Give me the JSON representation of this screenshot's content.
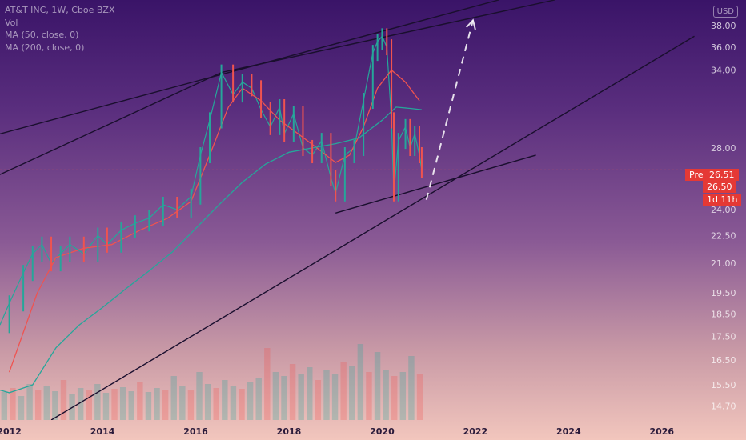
{
  "legend": {
    "title": "AT&T INC, 1W, Cboe BZX",
    "vol": "Vol",
    "ma50": "MA (50, close, 0)",
    "ma200": "MA (200, close, 0)"
  },
  "currency": "USD",
  "labels": {
    "pre": "Pre",
    "pre_price": "26.51",
    "last_price": "26.50",
    "countdown": "1d 11h"
  },
  "colors": {
    "up": "#26a69a",
    "down": "#ef5350",
    "ma50": "#ef5350",
    "ma200": "#26a69a",
    "trendline": "#1a0f2e",
    "projection": "#ffffff",
    "badge": "#e53935"
  },
  "chart_data": {
    "type": "line",
    "title": "AT&T INC, 1W, Cboe BZX",
    "y_scale": "log",
    "ylim": [
      14.2,
      40.5
    ],
    "xlim": [
      2011.8,
      2027.0
    ],
    "y_ticks": [
      {
        "value": 14.7,
        "label": "14.70"
      },
      {
        "value": 15.5,
        "label": "15.50"
      },
      {
        "value": 16.5,
        "label": "16.50"
      },
      {
        "value": 17.5,
        "label": "17.50"
      },
      {
        "value": 18.5,
        "label": "18.50"
      },
      {
        "value": 19.5,
        "label": "19.50"
      },
      {
        "value": 21.0,
        "label": "21.00"
      },
      {
        "value": 22.5,
        "label": "22.50"
      },
      {
        "value": 24.0,
        "label": "24.00"
      },
      {
        "value": 28.0,
        "label": "28.00"
      },
      {
        "value": 34.0,
        "label": "34.00"
      },
      {
        "value": 36.0,
        "label": "36.00"
      },
      {
        "value": 38.0,
        "label": "38.00"
      }
    ],
    "x_ticks": [
      2012,
      2014,
      2016,
      2018,
      2020,
      2022,
      2024,
      2026
    ],
    "series": [
      {
        "type": "price",
        "points": [
          [
            2011.8,
            18.0
          ],
          [
            2012.0,
            19.0
          ],
          [
            2012.3,
            20.5
          ],
          [
            2012.5,
            21.5
          ],
          [
            2012.7,
            22.0
          ],
          [
            2012.9,
            21.0
          ],
          [
            2013.1,
            21.5
          ],
          [
            2013.3,
            22.0
          ],
          [
            2013.6,
            21.5
          ],
          [
            2013.9,
            22.5
          ],
          [
            2014.1,
            22.0
          ],
          [
            2014.4,
            22.8
          ],
          [
            2014.7,
            23.2
          ],
          [
            2015.0,
            23.5
          ],
          [
            2015.3,
            24.3
          ],
          [
            2015.6,
            24.0
          ],
          [
            2015.9,
            24.8
          ],
          [
            2016.1,
            27.5
          ],
          [
            2016.3,
            30.0
          ],
          [
            2016.55,
            33.8
          ],
          [
            2016.8,
            32.0
          ],
          [
            2017.0,
            33.0
          ],
          [
            2017.2,
            32.5
          ],
          [
            2017.4,
            30.8
          ],
          [
            2017.6,
            29.5
          ],
          [
            2017.8,
            31.0
          ],
          [
            2017.9,
            29.0
          ],
          [
            2018.1,
            30.5
          ],
          [
            2018.3,
            28.0
          ],
          [
            2018.5,
            27.5
          ],
          [
            2018.7,
            28.5
          ],
          [
            2018.9,
            26.0
          ],
          [
            2019.0,
            25.0
          ],
          [
            2019.2,
            27.5
          ],
          [
            2019.4,
            28.0
          ],
          [
            2019.6,
            31.5
          ],
          [
            2019.8,
            35.5
          ],
          [
            2019.9,
            36.5
          ],
          [
            2020.0,
            37.0
          ],
          [
            2020.1,
            36.0
          ],
          [
            2020.2,
            30.0
          ],
          [
            2020.25,
            25.0
          ],
          [
            2020.35,
            28.5
          ],
          [
            2020.5,
            29.5
          ],
          [
            2020.6,
            28.0
          ],
          [
            2020.7,
            29.0
          ],
          [
            2020.8,
            27.5
          ],
          [
            2020.85,
            26.5
          ]
        ]
      },
      {
        "type": "ma50",
        "points": [
          [
            2012.0,
            16.0
          ],
          [
            2012.6,
            19.5
          ],
          [
            2013.0,
            21.3
          ],
          [
            2013.6,
            21.8
          ],
          [
            2014.2,
            22.0
          ],
          [
            2014.8,
            22.8
          ],
          [
            2015.4,
            23.5
          ],
          [
            2015.9,
            24.5
          ],
          [
            2016.3,
            27.5
          ],
          [
            2016.7,
            31.0
          ],
          [
            2017.0,
            32.5
          ],
          [
            2017.4,
            31.5
          ],
          [
            2017.8,
            30.0
          ],
          [
            2018.2,
            29.0
          ],
          [
            2018.6,
            28.0
          ],
          [
            2019.0,
            27.0
          ],
          [
            2019.3,
            27.5
          ],
          [
            2019.6,
            29.5
          ],
          [
            2019.9,
            32.5
          ],
          [
            2020.2,
            34.0
          ],
          [
            2020.5,
            33.0
          ],
          [
            2020.8,
            31.5
          ]
        ]
      },
      {
        "type": "ma200",
        "points": [
          [
            2011.8,
            15.3
          ],
          [
            2012.0,
            15.2
          ],
          [
            2012.5,
            15.5
          ],
          [
            2013.0,
            17.0
          ],
          [
            2013.5,
            18.0
          ],
          [
            2014.0,
            18.8
          ],
          [
            2014.5,
            19.7
          ],
          [
            2015.0,
            20.6
          ],
          [
            2015.5,
            21.6
          ],
          [
            2016.0,
            22.9
          ],
          [
            2016.5,
            24.3
          ],
          [
            2017.0,
            25.7
          ],
          [
            2017.5,
            26.9
          ],
          [
            2018.0,
            27.7
          ],
          [
            2018.5,
            28.0
          ],
          [
            2019.0,
            28.3
          ],
          [
            2019.5,
            28.7
          ],
          [
            2020.0,
            30.0
          ],
          [
            2020.3,
            31.0
          ],
          [
            2020.6,
            30.9
          ],
          [
            2020.85,
            30.8
          ]
        ]
      }
    ],
    "volume": [
      0.35,
      0.4,
      0.3,
      0.45,
      0.38,
      0.42,
      0.36,
      0.5,
      0.33,
      0.4,
      0.37,
      0.45,
      0.34,
      0.39,
      0.41,
      0.36,
      0.48,
      0.35,
      0.4,
      0.38,
      0.55,
      0.42,
      0.37,
      0.6,
      0.45,
      0.4,
      0.5,
      0.43,
      0.39,
      0.47,
      0.52,
      0.9,
      0.6,
      0.55,
      0.7,
      0.58,
      0.66,
      0.5,
      0.62,
      0.57,
      0.72,
      0.68,
      0.95,
      0.6,
      0.85,
      0.62,
      0.55,
      0.6,
      0.8,
      0.58
    ],
    "trendlines": [
      {
        "from": [
          2011.8,
          26.2
        ],
        "to": [
          2016.55,
          33.8
        ]
      },
      {
        "from": [
          2016.55,
          33.8
        ],
        "to": [
          2023.7,
          40.5
        ]
      },
      {
        "from": [
          2012.9,
          14.2
        ],
        "to": [
          2026.7,
          37.0
        ]
      },
      {
        "from": [
          2019.0,
          23.8
        ],
        "to": [
          2023.3,
          27.5
        ]
      },
      {
        "from": [
          2011.8,
          29.0
        ],
        "to": [
          2022.5,
          40.5
        ]
      }
    ],
    "projection": {
      "from": [
        2020.95,
        24.6
      ],
      "to": [
        2021.95,
        38.5
      ]
    },
    "current_price": 26.51
  }
}
